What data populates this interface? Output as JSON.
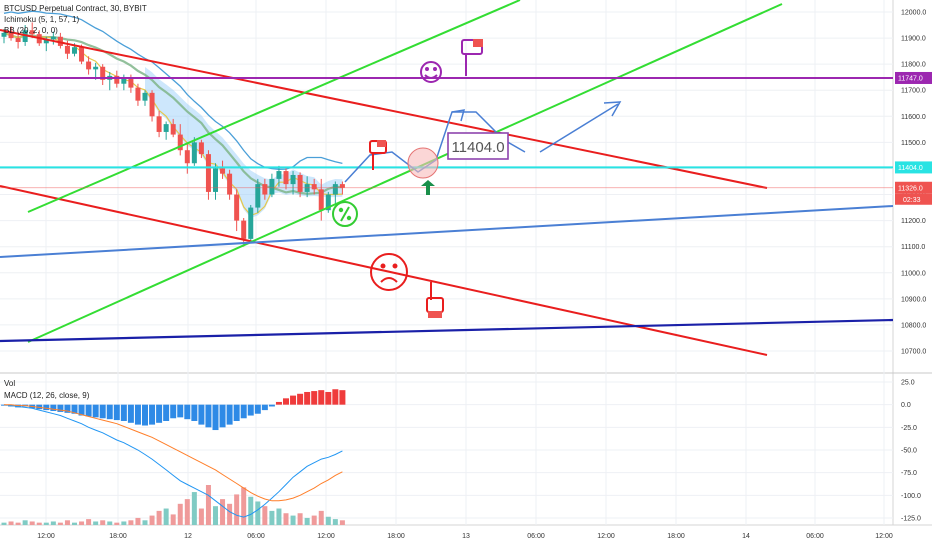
{
  "header": {
    "symbol": "BTCUSD Perpetual Contract, 30, BYBIT",
    "ichimoku": "Ichimoku (5, 1, 57, 1)",
    "bb": "BB (20, 2, 0, 0)"
  },
  "colors": {
    "up": "#26a69a",
    "down": "#ef5350",
    "channel_red": "#e91e1e",
    "channel_green": "#33dd33",
    "support_blue": "#4a7fd4",
    "support_navy": "#1a20a8",
    "resistance_purple": "#9c27b0",
    "level_cyan": "#29e3e3",
    "annotation_purple": "#8e44ad",
    "annotation_blue": "#4a7fd4"
  },
  "chart_data": [
    {
      "type": "candlestick",
      "panel": "price",
      "y_range": [
        10640,
        12050
      ],
      "y_ticks": [
        12000,
        11900,
        11800,
        11700,
        11600,
        11500,
        11400,
        11300,
        11200,
        11100,
        11000,
        10900,
        10800,
        10700
      ],
      "x_tick_labels": [
        "12:00",
        "18:00",
        "12",
        "06:00",
        "12:00",
        "18:00",
        "13",
        "06:00",
        "12:00",
        "18:00",
        "14",
        "06:00",
        "12:00"
      ],
      "candles": [
        [
          11905,
          11935,
          11880,
          11920
        ],
        [
          11920,
          11945,
          11890,
          11900
        ],
        [
          11900,
          11925,
          11860,
          11885
        ],
        [
          11885,
          11950,
          11870,
          11930
        ],
        [
          11930,
          11960,
          11900,
          11915
        ],
        [
          11915,
          11930,
          11870,
          11880
        ],
        [
          11880,
          11905,
          11850,
          11895
        ],
        [
          11895,
          11925,
          11875,
          11905
        ],
        [
          11905,
          11920,
          11860,
          11870
        ],
        [
          11870,
          11890,
          11820,
          11840
        ],
        [
          11840,
          11880,
          11830,
          11865
        ],
        [
          11865,
          11875,
          11800,
          11810
        ],
        [
          11810,
          11830,
          11760,
          11780
        ],
        [
          11780,
          11805,
          11740,
          11790
        ],
        [
          11790,
          11800,
          11720,
          11740
        ],
        [
          11740,
          11770,
          11700,
          11755
        ],
        [
          11755,
          11775,
          11710,
          11725
        ],
        [
          11725,
          11760,
          11700,
          11745
        ],
        [
          11745,
          11760,
          11690,
          11710
        ],
        [
          11710,
          11725,
          11640,
          11660
        ],
        [
          11660,
          11700,
          11640,
          11690
        ],
        [
          11690,
          11700,
          11580,
          11600
        ],
        [
          11600,
          11620,
          11520,
          11540
        ],
        [
          11540,
          11580,
          11510,
          11570
        ],
        [
          11570,
          11590,
          11520,
          11530
        ],
        [
          11530,
          11570,
          11450,
          11470
        ],
        [
          11470,
          11500,
          11380,
          11420
        ],
        [
          11420,
          11520,
          11410,
          11500
        ],
        [
          11500,
          11510,
          11440,
          11455
        ],
        [
          11455,
          11470,
          11280,
          11310
        ],
        [
          11310,
          11420,
          11280,
          11400
        ],
        [
          11400,
          11430,
          11360,
          11380
        ],
        [
          11380,
          11395,
          11280,
          11300
        ],
        [
          11300,
          11320,
          11160,
          11200
        ],
        [
          11200,
          11210,
          11100,
          11130
        ],
        [
          11130,
          11260,
          11120,
          11250
        ],
        [
          11250,
          11360,
          11230,
          11340
        ],
        [
          11340,
          11360,
          11280,
          11300
        ],
        [
          11300,
          11380,
          11290,
          11360
        ],
        [
          11360,
          11410,
          11330,
          11390
        ],
        [
          11390,
          11400,
          11320,
          11340
        ],
        [
          11340,
          11390,
          11300,
          11375
        ],
        [
          11375,
          11385,
          11290,
          11310
        ],
        [
          11310,
          11370,
          11290,
          11340
        ],
        [
          11340,
          11360,
          11300,
          11320
        ],
        [
          11320,
          11360,
          11200,
          11240
        ],
        [
          11240,
          11310,
          11230,
          11300
        ],
        [
          11300,
          11350,
          11260,
          11340
        ],
        [
          11340,
          11350,
          11300,
          11326
        ]
      ],
      "horizontal_levels": [
        {
          "value": 11747.0,
          "label": "11747.0",
          "color": "#9c27b0"
        },
        {
          "value": 11404.0,
          "label": "11404.0",
          "color": "#29e3e3"
        },
        {
          "value": 11326.0,
          "label": "11326.0",
          "color": "#ef5350",
          "countdown": "02:33"
        }
      ],
      "annotation_callout": "11404.0"
    },
    {
      "type": "bar",
      "panel": "volume",
      "title": "Vol",
      "values": [
        2,
        3,
        2,
        4,
        3,
        2,
        2,
        3,
        2,
        4,
        2,
        3,
        5,
        3,
        4,
        3,
        2,
        3,
        4,
        6,
        4,
        8,
        12,
        14,
        9,
        18,
        22,
        28,
        14,
        34,
        16,
        22,
        18,
        26,
        32,
        24,
        20,
        16,
        12,
        14,
        10,
        8,
        10,
        6,
        8,
        12,
        7,
        5,
        4
      ]
    },
    {
      "type": "bar",
      "panel": "macd",
      "title": "MACD (12, 26, close, 9)",
      "y_range": [
        -135,
        30
      ],
      "y_ticks": [
        25.0,
        0.0,
        -25.0,
        -50.0,
        -75.0,
        -100.0,
        -125.0
      ],
      "histogram": [
        -1,
        -2,
        -3,
        -2,
        -4,
        -5,
        -6,
        -7,
        -8,
        -9,
        -10,
        -12,
        -13,
        -14,
        -15,
        -16,
        -17,
        -18,
        -20,
        -22,
        -23,
        -22,
        -20,
        -18,
        -15,
        -14,
        -16,
        -18,
        -22,
        -25,
        -28,
        -25,
        -22,
        -18,
        -15,
        -12,
        -10,
        -6,
        -2,
        3,
        7,
        10,
        12,
        14,
        15,
        16,
        14,
        17,
        16
      ],
      "macd_line": [
        0,
        -1,
        -2,
        -3,
        -4,
        -6,
        -8,
        -10,
        -12,
        -15,
        -18,
        -21,
        -25,
        -28,
        -31,
        -35,
        -39,
        -42,
        -46,
        -50,
        -55,
        -60,
        -66,
        -72,
        -78,
        -84,
        -88,
        -92,
        -96,
        -100,
        -106,
        -112,
        -118,
        -122,
        -124,
        -121,
        -116,
        -110,
        -103,
        -96,
        -88,
        -80,
        -74,
        -68,
        -64,
        -60,
        -58,
        -55,
        -51
      ],
      "signal_line": [
        0,
        0,
        -1,
        -1,
        -2,
        -3,
        -4,
        -5,
        -6,
        -7,
        -9,
        -11,
        -13,
        -15,
        -17,
        -19,
        -21,
        -24,
        -27,
        -30,
        -33,
        -36,
        -40,
        -44,
        -48,
        -52,
        -56,
        -60,
        -64,
        -68,
        -72,
        -77,
        -82,
        -87,
        -92,
        -97,
        -101,
        -104,
        -106,
        -106,
        -105,
        -103,
        -100,
        -96,
        -92,
        -87,
        -83,
        -78,
        -74
      ]
    }
  ]
}
